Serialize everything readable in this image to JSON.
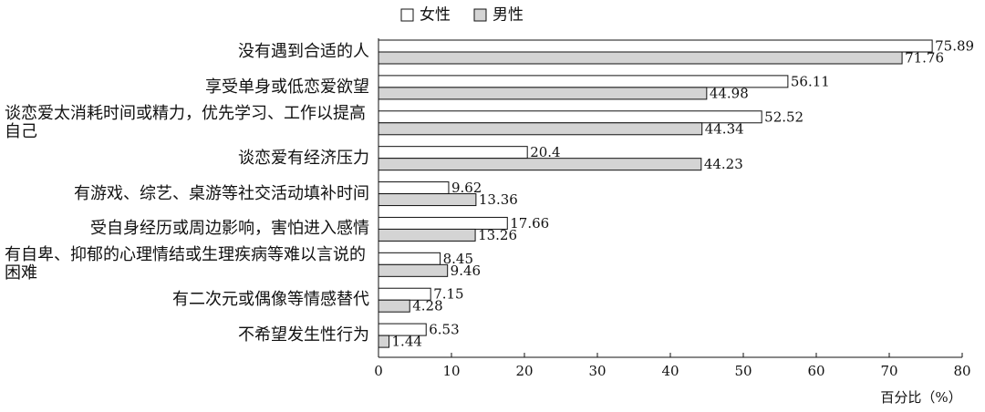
{
  "chart_data": {
    "type": "barh",
    "xlabel": "百分比（%）",
    "categories": [
      "没有遇到合适的人",
      "享受单身或低恋爱欲望",
      "谈恋爱太消耗时间或精力，优先学习、工作以提高自己",
      "谈恋爱有经济压力",
      "有游戏、综艺、桌游等社交活动填补时间",
      "受自身经历或周边影响，害怕进入感情",
      "有自卑、抑郁的心理情结或生理疾病等难以言说的困难",
      "有二次元或偶像等情感替代",
      "不希望发生性行为"
    ],
    "series": [
      {
        "name": "女性",
        "color": "#ffffff",
        "values": [
          75.89,
          56.11,
          52.52,
          20.4,
          9.62,
          17.66,
          8.45,
          7.15,
          6.53
        ]
      },
      {
        "name": "男性",
        "color": "#d4d4d4",
        "values": [
          71.76,
          44.98,
          44.34,
          44.23,
          13.36,
          13.26,
          9.46,
          4.28,
          1.44
        ]
      }
    ],
    "xlim": [
      0,
      80
    ],
    "xticks": [
      0,
      10,
      20,
      30,
      40,
      50,
      60,
      70,
      80
    ]
  }
}
